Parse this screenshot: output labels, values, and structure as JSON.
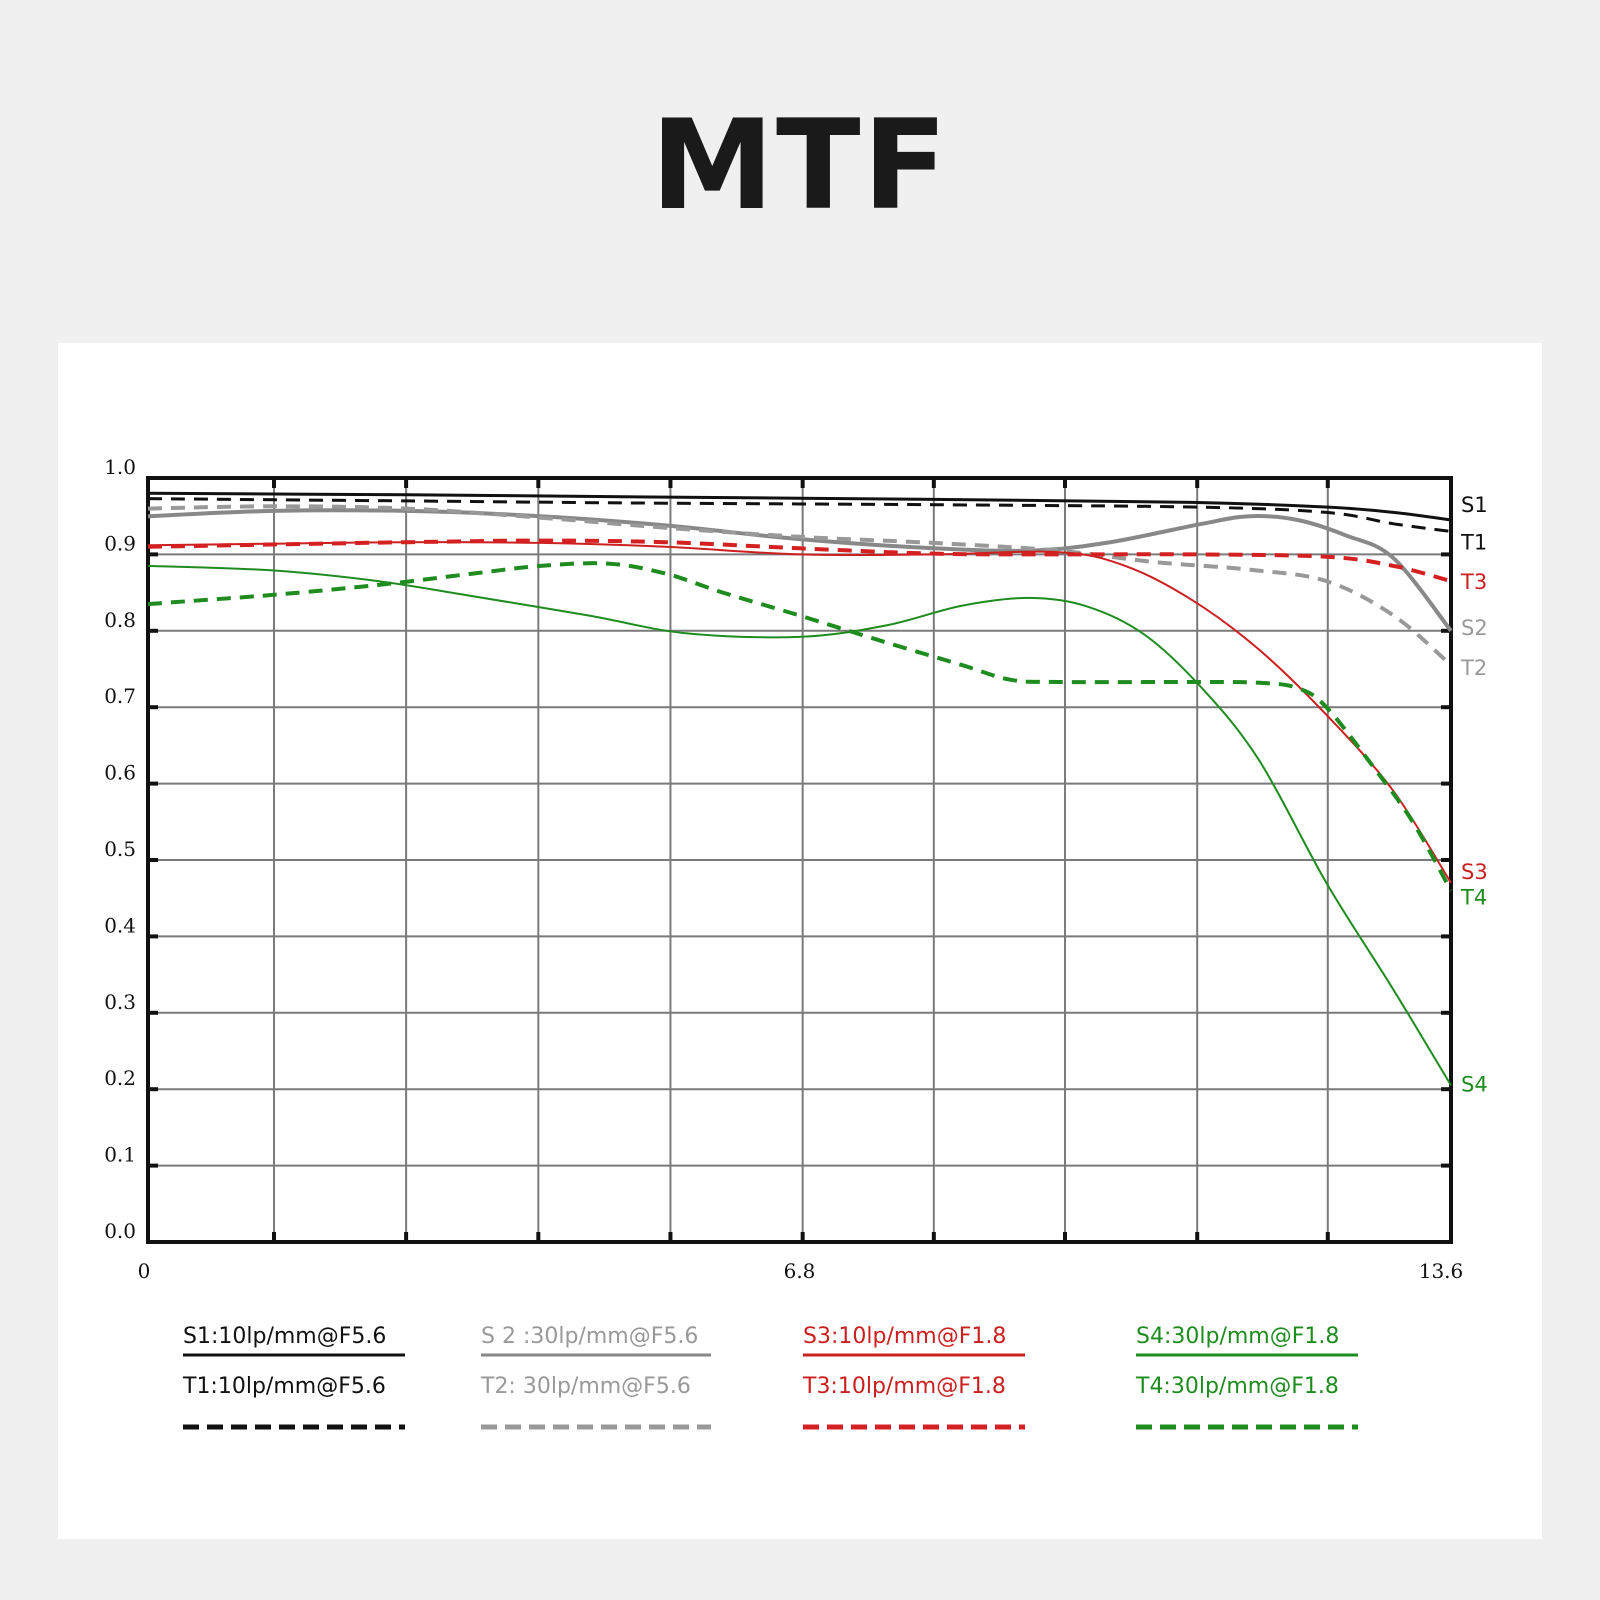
{
  "header": {
    "title": "MTF"
  },
  "chart_data": {
    "type": "line",
    "title": "",
    "xlabel": "",
    "ylabel": "",
    "xlim": [
      0,
      13.6
    ],
    "ylim": [
      0,
      1.0
    ],
    "xticks": [
      {
        "value": 0,
        "label": "0"
      },
      {
        "value": 6.8,
        "label": "6.8"
      },
      {
        "value": 13.6,
        "label": "13.6"
      }
    ],
    "xgrid": [
      0,
      1.315,
      2.694,
      4.074,
      5.453,
      6.833,
      8.202,
      9.571,
      10.951,
      12.314,
      13.6
    ],
    "yticks": [
      {
        "value": 0.0,
        "label": "0.0"
      },
      {
        "value": 0.1,
        "label": "0.1"
      },
      {
        "value": 0.2,
        "label": "0.2"
      },
      {
        "value": 0.3,
        "label": "0.3"
      },
      {
        "value": 0.4,
        "label": "0.4"
      },
      {
        "value": 0.5,
        "label": "0.5"
      },
      {
        "value": 0.6,
        "label": "0.6"
      },
      {
        "value": 0.7,
        "label": "0.7"
      },
      {
        "value": 0.8,
        "label": "0.8"
      },
      {
        "value": 0.9,
        "label": "0.9"
      },
      {
        "value": 1.0,
        "label": "1.0"
      }
    ],
    "grid": true,
    "legend_position": "bottom",
    "series": [
      {
        "name": "S1:10lp/mm@F5.6",
        "end_label": "S1",
        "color": "#111111",
        "label_color": "#111111",
        "dashed": false,
        "width": 3,
        "points": [
          [
            0,
            0.98
          ],
          [
            2.7,
            0.978
          ],
          [
            5.4,
            0.975
          ],
          [
            8.2,
            0.972
          ],
          [
            10.9,
            0.968
          ],
          [
            12.3,
            0.962
          ],
          [
            13.0,
            0.955
          ],
          [
            13.6,
            0.945
          ]
        ]
      },
      {
        "name": "T1:10lp/mm@F5.6",
        "end_label": "T1",
        "color": "#111111",
        "label_color": "#111111",
        "dashed": true,
        "width": 3,
        "points": [
          [
            0,
            0.973
          ],
          [
            2.7,
            0.97
          ],
          [
            5.4,
            0.967
          ],
          [
            8.2,
            0.965
          ],
          [
            10.9,
            0.962
          ],
          [
            12.3,
            0.955
          ],
          [
            13.0,
            0.94
          ],
          [
            13.6,
            0.93
          ]
        ]
      },
      {
        "name": "S 2 :30lp/mm@F5.6",
        "end_label": "S2",
        "color": "#888888",
        "label_color": "#999999",
        "dashed": false,
        "width": 4,
        "points": [
          [
            0,
            0.95
          ],
          [
            1.3,
            0.957
          ],
          [
            2.7,
            0.957
          ],
          [
            4.1,
            0.95
          ],
          [
            5.4,
            0.938
          ],
          [
            6.8,
            0.92
          ],
          [
            8.2,
            0.908
          ],
          [
            9.2,
            0.905
          ],
          [
            10.0,
            0.915
          ],
          [
            11.0,
            0.94
          ],
          [
            11.5,
            0.95
          ],
          [
            12.0,
            0.945
          ],
          [
            12.5,
            0.925
          ],
          [
            13.0,
            0.895
          ],
          [
            13.6,
            0.8
          ]
        ]
      },
      {
        "name": "T2: 30lp/mm@F5.6",
        "end_label": "T2",
        "color": "#999999",
        "label_color": "#999999",
        "dashed": true,
        "width": 4,
        "points": [
          [
            0,
            0.96
          ],
          [
            1.3,
            0.963
          ],
          [
            2.7,
            0.96
          ],
          [
            4.1,
            0.948
          ],
          [
            5.4,
            0.935
          ],
          [
            6.8,
            0.923
          ],
          [
            8.2,
            0.915
          ],
          [
            9.5,
            0.905
          ],
          [
            10.5,
            0.89
          ],
          [
            11.5,
            0.88
          ],
          [
            12.3,
            0.865
          ],
          [
            13.0,
            0.82
          ],
          [
            13.6,
            0.755
          ]
        ]
      },
      {
        "name": "S3:10lp/mm@F1.8",
        "end_label": "S3",
        "color": "#cc2020",
        "label_color": "#cc2020",
        "dashed": false,
        "width": 2,
        "points": [
          [
            0,
            0.912
          ],
          [
            1.3,
            0.914
          ],
          [
            2.7,
            0.916
          ],
          [
            4.1,
            0.915
          ],
          [
            5.4,
            0.91
          ],
          [
            6.8,
            0.9
          ],
          [
            8.2,
            0.9
          ],
          [
            9.5,
            0.903
          ],
          [
            10.2,
            0.885
          ],
          [
            10.9,
            0.84
          ],
          [
            11.6,
            0.775
          ],
          [
            12.3,
            0.69
          ],
          [
            13.0,
            0.59
          ],
          [
            13.6,
            0.47
          ]
        ]
      },
      {
        "name": "T3:10lp/mm@F1.8",
        "end_label": "T3",
        "color": "#d42020",
        "label_color": "#cc2020",
        "dashed": true,
        "width": 4,
        "points": [
          [
            0,
            0.91
          ],
          [
            2.7,
            0.916
          ],
          [
            4.1,
            0.918
          ],
          [
            5.4,
            0.916
          ],
          [
            6.8,
            0.908
          ],
          [
            8.2,
            0.901
          ],
          [
            9.5,
            0.9
          ],
          [
            10.9,
            0.9
          ],
          [
            12.3,
            0.897
          ],
          [
            13.0,
            0.885
          ],
          [
            13.6,
            0.865
          ]
        ]
      },
      {
        "name": "S4:30lp/mm@F1.8",
        "end_label": "S4",
        "color": "#1e8c1e",
        "label_color": "#1e8c1e",
        "dashed": false,
        "width": 2,
        "points": [
          [
            0,
            0.885
          ],
          [
            1.3,
            0.879
          ],
          [
            2.4,
            0.865
          ],
          [
            3.4,
            0.845
          ],
          [
            4.6,
            0.82
          ],
          [
            5.6,
            0.797
          ],
          [
            6.8,
            0.792
          ],
          [
            7.7,
            0.807
          ],
          [
            8.5,
            0.833
          ],
          [
            9.2,
            0.843
          ],
          [
            9.8,
            0.832
          ],
          [
            10.4,
            0.795
          ],
          [
            11.0,
            0.725
          ],
          [
            11.6,
            0.63
          ],
          [
            12.3,
            0.47
          ],
          [
            13.0,
            0.33
          ],
          [
            13.6,
            0.205
          ]
        ]
      },
      {
        "name": "T4:30lp/mm@F1.8",
        "end_label": "T4",
        "color": "#1e8c1e",
        "label_color": "#1e8c1e",
        "dashed": true,
        "width": 4,
        "points": [
          [
            0,
            0.835
          ],
          [
            1.3,
            0.847
          ],
          [
            2.4,
            0.86
          ],
          [
            3.4,
            0.875
          ],
          [
            4.1,
            0.885
          ],
          [
            4.8,
            0.888
          ],
          [
            5.4,
            0.875
          ],
          [
            6.0,
            0.85
          ],
          [
            6.8,
            0.82
          ],
          [
            7.7,
            0.785
          ],
          [
            8.5,
            0.755
          ],
          [
            9.0,
            0.736
          ],
          [
            9.5,
            0.733
          ],
          [
            10.9,
            0.733
          ],
          [
            11.6,
            0.732
          ],
          [
            12.0,
            0.725
          ],
          [
            12.3,
            0.7
          ],
          [
            12.8,
            0.62
          ],
          [
            13.2,
            0.55
          ],
          [
            13.6,
            0.46
          ]
        ]
      }
    ]
  }
}
